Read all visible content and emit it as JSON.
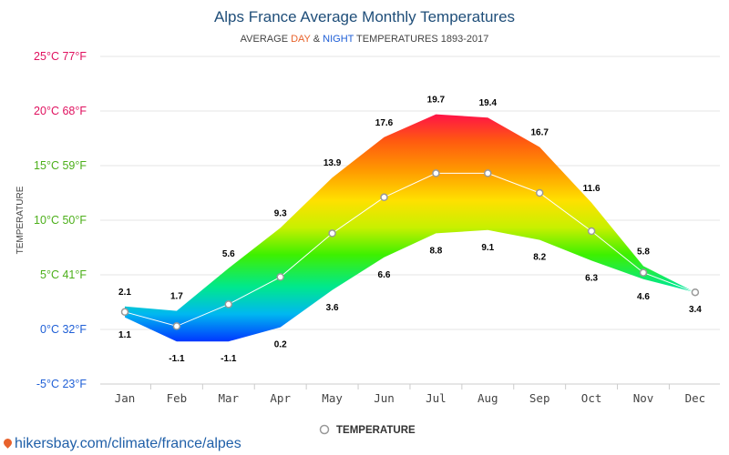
{
  "chart_data": {
    "type": "area",
    "title": "Alps France Average Monthly Temperatures",
    "subtitle": {
      "prefix": "AVERAGE ",
      "day": "DAY",
      "middle": " & ",
      "night": "NIGHT",
      "suffix": " TEMPERATURES 1893-2017"
    },
    "ylabel": "TEMPERATURE",
    "categories": [
      "Jan",
      "Feb",
      "Mar",
      "Apr",
      "May",
      "Jun",
      "Jul",
      "Aug",
      "Sep",
      "Oct",
      "Nov",
      "Dec"
    ],
    "ylim": [
      -5,
      25
    ],
    "yticks": [
      {
        "value": 25,
        "label": "25°C 77°F"
      },
      {
        "value": 20,
        "label": "20°C 68°F"
      },
      {
        "value": 15,
        "label": "15°C 59°F"
      },
      {
        "value": 10,
        "label": "10°C 50°F"
      },
      {
        "value": 5,
        "label": "5°C 41°F"
      },
      {
        "value": 0,
        "label": "0°C 32°F"
      },
      {
        "value": -5,
        "label": "-5°C 23°F"
      }
    ],
    "series": [
      {
        "name": "DAY",
        "values": [
          2.1,
          1.7,
          5.6,
          9.3,
          13.9,
          17.6,
          19.7,
          19.4,
          16.7,
          11.6,
          5.8,
          3.4
        ]
      },
      {
        "name": "NIGHT",
        "values": [
          1.1,
          -1.1,
          -1.1,
          0.2,
          3.6,
          6.6,
          8.8,
          9.1,
          8.2,
          6.3,
          4.6,
          3.4
        ]
      },
      {
        "name": "TEMPERATURE",
        "values": [
          1.6,
          0.3,
          2.3,
          4.8,
          8.8,
          12.1,
          14.3,
          14.3,
          12.5,
          9.0,
          5.2,
          3.4
        ]
      }
    ],
    "grid": true,
    "legend": "bottom-center"
  },
  "legend": {
    "label": "TEMPERATURE"
  },
  "credit": {
    "text": "hikersbay.com/climate/france/alpes"
  },
  "colors": {
    "title": "#1f4e79",
    "day": "#e8632b",
    "night": "#1f5fd6",
    "grid": "#e6e6e6",
    "temperature_line": "#ffffff",
    "marker_stroke": "#999999"
  }
}
